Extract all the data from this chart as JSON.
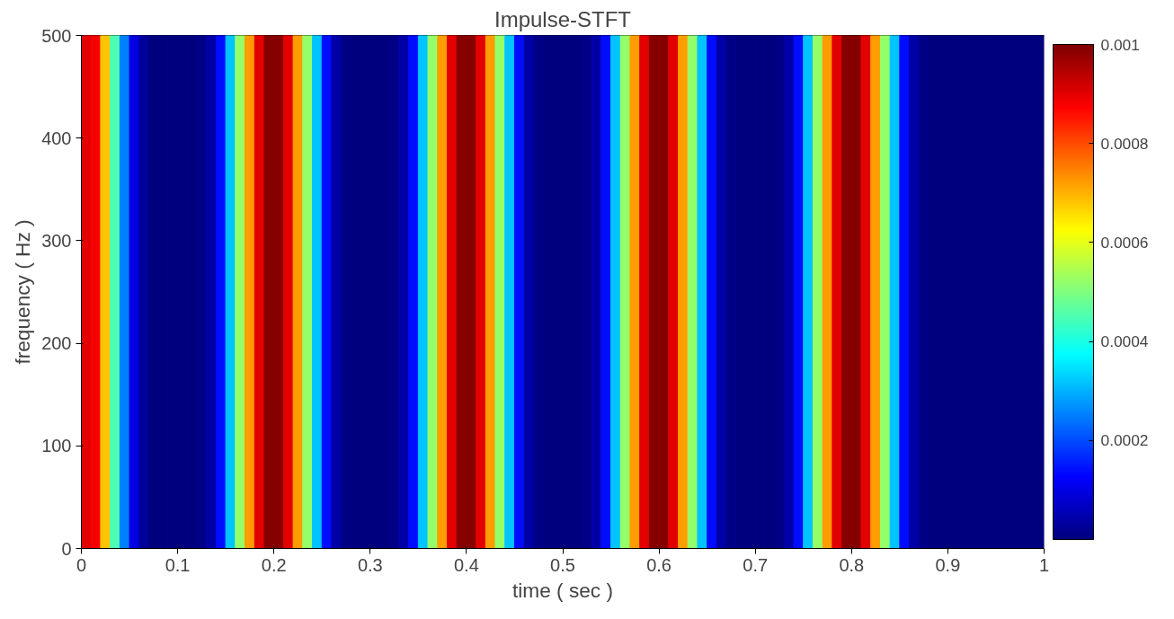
{
  "chart_data": {
    "type": "heatmap",
    "title": "Impulse-STFT",
    "xlabel": "time ( sec )",
    "ylabel": "frequency ( Hz )",
    "cells": [
      [
        0.0009,
        0.00088,
        0.00068,
        0.00045,
        0.00025,
        0.0001,
        3e-05,
        0,
        0,
        0,
        0,
        0,
        1e-05,
        4e-05,
        0.00014,
        0.00032,
        0.00052,
        0.00072,
        0.0009,
        0.00099,
        0.00099,
        0.0009,
        0.00072,
        0.00052,
        0.00032,
        0.00014,
        4e-05,
        1e-05,
        0,
        0,
        0,
        0,
        1e-05,
        4e-05,
        0.00014,
        0.00032,
        0.00052,
        0.00072,
        0.0009,
        0.00099,
        0.00099,
        0.0009,
        0.00072,
        0.00052,
        0.00032,
        0.00014,
        4e-05,
        1e-05,
        0,
        0,
        0,
        0,
        1e-05,
        4e-05,
        0.00014,
        0.00032,
        0.00052,
        0.00072,
        0.0009,
        0.00099,
        0.00099,
        0.0009,
        0.00072,
        0.00052,
        0.00032,
        0.00014,
        4e-05,
        1e-05,
        0,
        0,
        0,
        0,
        1e-05,
        4e-05,
        0.00014,
        0.00032,
        0.00052,
        0.00072,
        0.0009,
        0.00099,
        0.00099,
        0.0009,
        0.00072,
        0.00052,
        0.00032,
        0.00014,
        4e-05,
        1e-05,
        0,
        0,
        0,
        0,
        0,
        0,
        0,
        0,
        0,
        0,
        0,
        0
      ]
    ],
    "xlim": [
      0,
      1
    ],
    "ylim": [
      0,
      500
    ],
    "xticks": [
      0,
      0.1,
      0.2,
      0.3,
      0.4,
      0.5,
      0.6,
      0.7,
      0.8,
      0.9,
      1
    ],
    "yticks": [
      0,
      100,
      200,
      300,
      400,
      500
    ],
    "clim": [
      0,
      0.001
    ],
    "cticks": [
      0.0002,
      0.0004,
      0.0006,
      0.0008,
      0.001
    ],
    "grid": false
  }
}
